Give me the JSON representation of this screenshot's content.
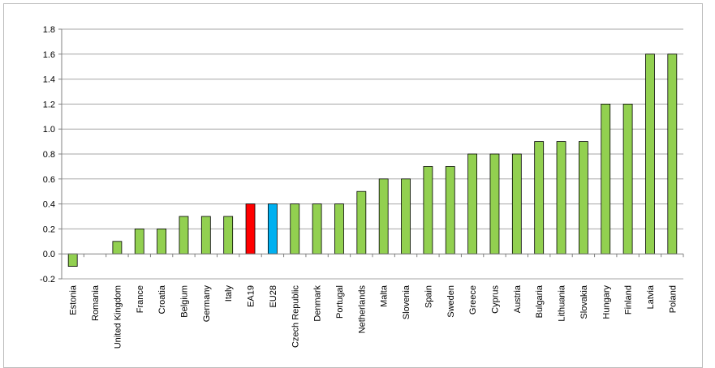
{
  "chart_data": {
    "type": "bar",
    "title": "",
    "xlabel": "",
    "ylabel": "",
    "ylim": [
      -0.2,
      1.8
    ],
    "yticks": [
      "-0.2",
      "0.0",
      "0.2",
      "0.4",
      "0.6",
      "0.8",
      "1.0",
      "1.2",
      "1.4",
      "1.6",
      "1.8"
    ],
    "grid": true,
    "legend": "none",
    "categories": [
      "Estonia",
      "Romania",
      "United Kingdom",
      "France",
      "Croatia",
      "Belgium",
      "Germany",
      "Italy",
      "EA19",
      "EU28",
      "Czech Republic",
      "Denmark",
      "Portugal",
      "Netherlands",
      "Malta",
      "Slovenia",
      "Spain",
      "Sweden",
      "Greece",
      "Cyprus",
      "Austria",
      "Bulgaria",
      "Lithuania",
      "Slovakia",
      "Hungary",
      "Finland",
      "Latvia",
      "Poland"
    ],
    "values": [
      -0.1,
      0.0,
      0.1,
      0.2,
      0.2,
      0.3,
      0.3,
      0.3,
      0.4,
      0.4,
      0.4,
      0.4,
      0.4,
      0.5,
      0.6,
      0.6,
      0.7,
      0.7,
      0.8,
      0.8,
      0.8,
      0.9,
      0.9,
      0.9,
      1.2,
      1.2,
      1.6,
      1.6
    ],
    "colors": {
      "default": "#92d050",
      "EA19": "#ff0000",
      "EU28": "#00b0f0",
      "grid": "#a6a6a6",
      "axis": "#808080"
    }
  }
}
